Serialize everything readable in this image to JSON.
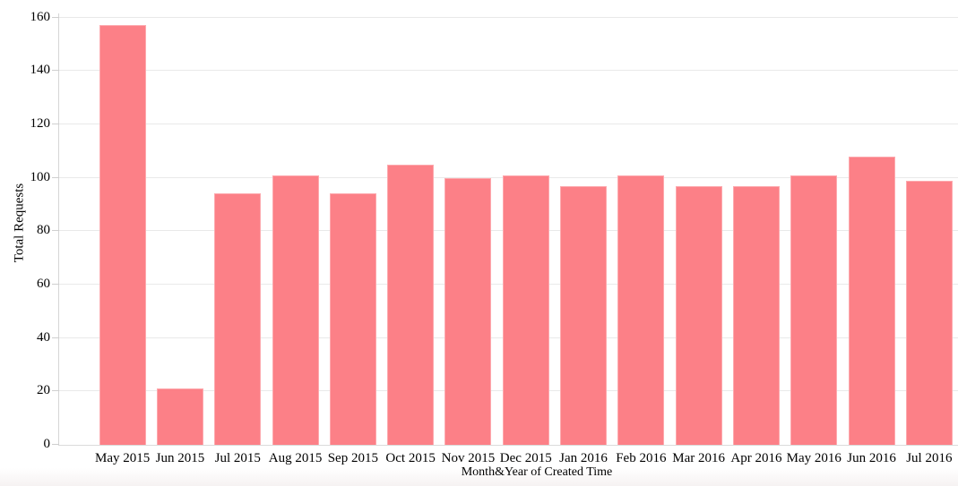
{
  "chart_data": {
    "type": "bar",
    "xlabel": "Month&Year of Created Time",
    "ylabel": "Total Requests",
    "categories": [
      "May 2015",
      "Jun 2015",
      "Jul 2015",
      "Aug 2015",
      "Sep 2015",
      "Oct 2015",
      "Nov 2015",
      "Dec 2015",
      "Jan 2016",
      "Feb 2016",
      "Mar 2016",
      "Apr 2016",
      "May 2016",
      "Jun 2016",
      "Jul 2016"
    ],
    "values": [
      157,
      21,
      94,
      101,
      94,
      105,
      100,
      101,
      97,
      101,
      97,
      97,
      101,
      108,
      99
    ],
    "ylim": [
      0,
      160
    ],
    "ytick_step": 20,
    "yticks": [
      0,
      20,
      40,
      60,
      80,
      100,
      120,
      140,
      160
    ],
    "grid": "horizontal",
    "legend": "none",
    "colors": {
      "bar_fill": "#fc8087",
      "bar_edge": "#fda9ae",
      "gridline": "#e9e9e9",
      "axis_line": "#d5d5d5",
      "text": "#000000",
      "background": "#ffffff"
    }
  }
}
